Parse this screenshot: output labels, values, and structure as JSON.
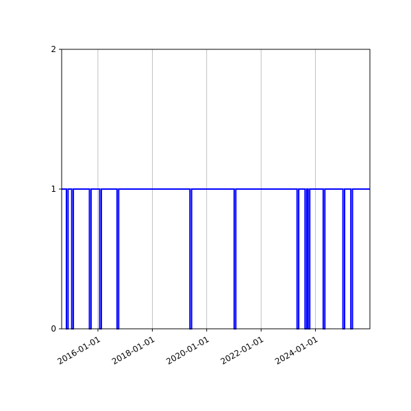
{
  "chart_data": {
    "type": "line",
    "title": "",
    "xlabel": "",
    "ylabel": "",
    "x_axis": {
      "type": "date",
      "range": [
        "2014-09-01",
        "2026-01-01"
      ],
      "ticks": [
        "2016-01-01",
        "2018-01-01",
        "2020-01-01",
        "2022-01-01",
        "2024-01-01"
      ],
      "tick_labels": [
        "2016-01-01",
        "2018-01-01",
        "2020-01-01",
        "2022-01-01",
        "2024-01-01"
      ],
      "grid": true
    },
    "y_axis": {
      "range": [
        0,
        2
      ],
      "ticks": [
        0,
        1,
        2
      ],
      "tick_labels": [
        "0",
        "1",
        "2"
      ],
      "grid": false
    },
    "series": [
      {
        "color": "#0000ff",
        "baseline": 1,
        "dips_to": 0,
        "dip_dates": [
          "2014-11-15",
          "2015-01-25",
          "2015-09-20",
          "2016-02-05",
          "2016-09-25",
          "2019-06-01",
          "2021-01-15",
          "2023-05-10",
          "2023-08-25",
          "2023-10-05",
          "2024-04-25",
          "2025-01-15",
          "2025-05-01"
        ]
      }
    ]
  }
}
